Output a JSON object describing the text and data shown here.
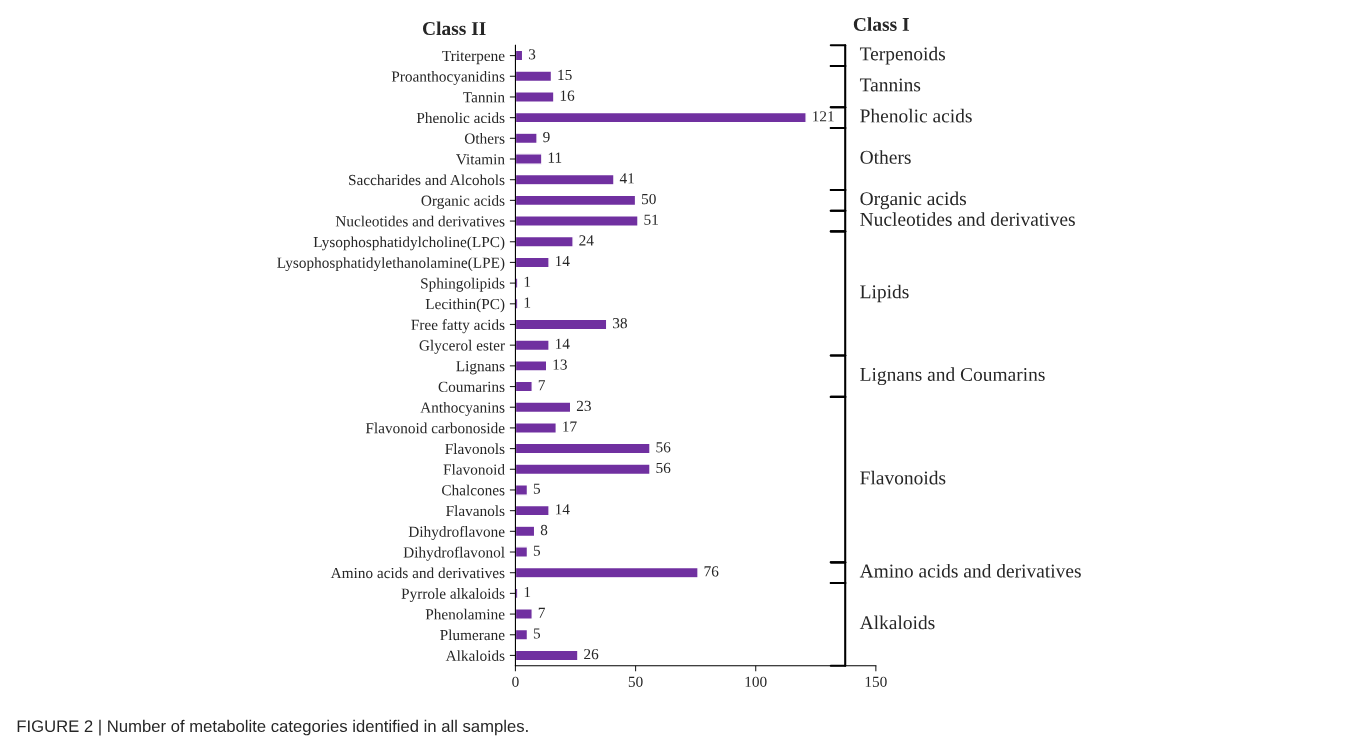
{
  "chart_data": {
    "type": "bar",
    "orientation": "horizontal",
    "ylabel": "Class II",
    "y2label": "Class I",
    "categories": [
      "Triterpene",
      "Proanthocyanidins",
      "Tannin",
      "Phenolic acids",
      "Others",
      "Vitamin",
      "Saccharides and Alcohols",
      "Organic acids",
      "Nucleotides and derivatives",
      "Lysophosphatidylcholine(LPC)",
      "Lysophosphatidylethanolamine(LPE)",
      "Sphingolipids",
      "Lecithin(PC)",
      "Free fatty acids",
      "Glycerol ester",
      "Lignans",
      "Coumarins",
      "Anthocyanins",
      "Flavonoid carbonoside",
      "Flavonols",
      "Flavonoid",
      "Chalcones",
      "Flavanols",
      "Dihydroflavone",
      "Dihydroflavonol",
      "Amino acids and derivatives",
      "Pyrrole alkaloids",
      "Phenolamine",
      "Plumerane",
      "Alkaloids"
    ],
    "values": [
      3,
      15,
      16,
      121,
      9,
      11,
      41,
      50,
      51,
      24,
      14,
      1,
      1,
      38,
      14,
      13,
      7,
      23,
      17,
      56,
      56,
      5,
      14,
      8,
      5,
      76,
      1,
      7,
      5,
      26
    ],
    "color": "#7030a0",
    "data_labels": true,
    "grid": false,
    "xlim": [
      0,
      150
    ],
    "xticks": [
      0,
      50,
      100,
      150
    ],
    "annotations": [
      "Terpenoids",
      "Tannins",
      "Phenolic acids",
      "Others",
      "Organic acids",
      "Nucleotides and derivatives",
      "Lipids",
      "Lignans and Coumarins",
      "Flavonoids",
      "Amino acids and derivatives",
      "Alkaloids",
      "FIGURE 2 | Number of metabolite categories identified in all samples."
    ]
  }
}
